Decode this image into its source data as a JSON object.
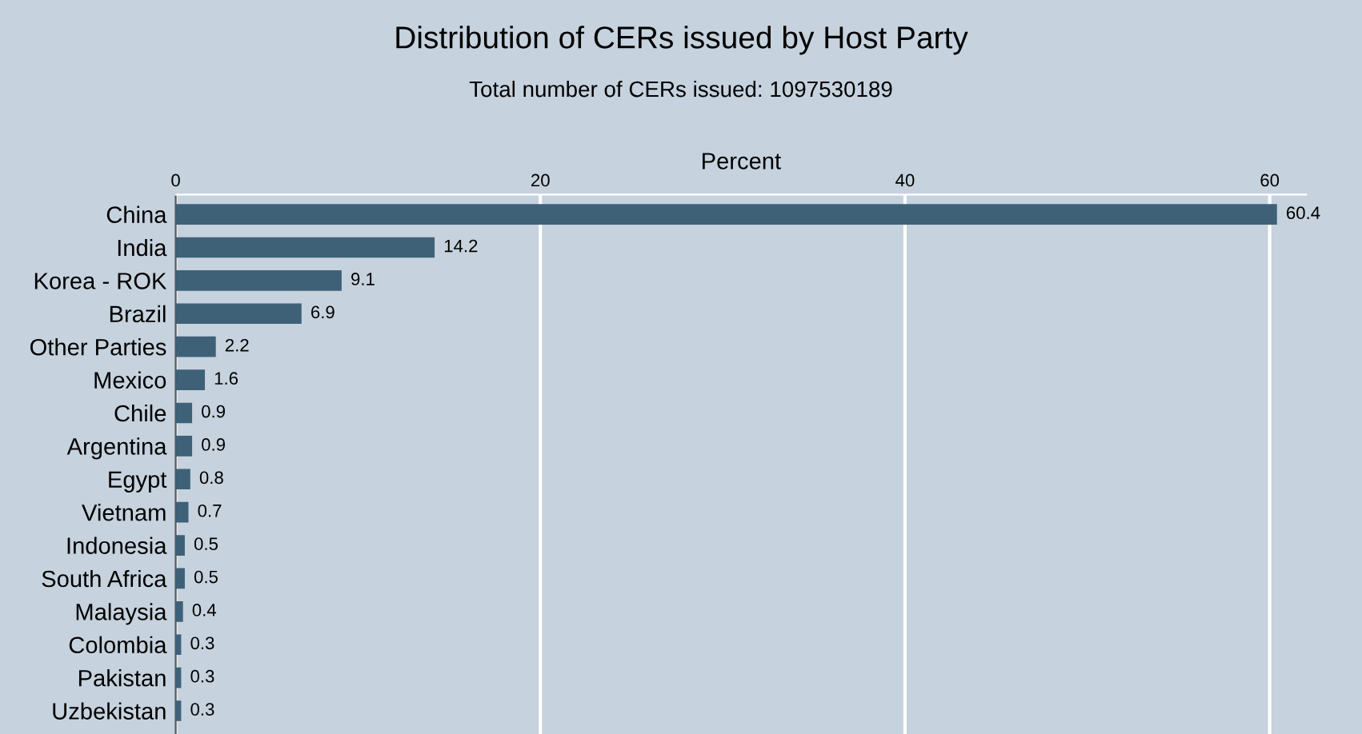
{
  "chart_data": {
    "type": "bar",
    "orientation": "horizontal",
    "title": "Distribution of CERs issued by Host Party",
    "subtitle": "Total number of CERs issued: 1097530189",
    "xlabel": "Percent",
    "categories": [
      "China",
      "India",
      "Korea - ROK",
      "Brazil",
      "Other Parties",
      "Mexico",
      "Chile",
      "Argentina",
      "Egypt",
      "Vietnam",
      "Indonesia",
      "South Africa",
      "Malaysia",
      "Colombia",
      "Pakistan",
      "Uzbekistan"
    ],
    "values": [
      60.4,
      14.2,
      9.1,
      6.9,
      2.2,
      1.6,
      0.9,
      0.9,
      0.8,
      0.7,
      0.5,
      0.5,
      0.4,
      0.3,
      0.3,
      0.3
    ],
    "color": "#3e6178",
    "xlim": [
      0,
      62
    ],
    "xticks": [
      0,
      20,
      40,
      60
    ],
    "grid": "x",
    "data_labels": true
  }
}
